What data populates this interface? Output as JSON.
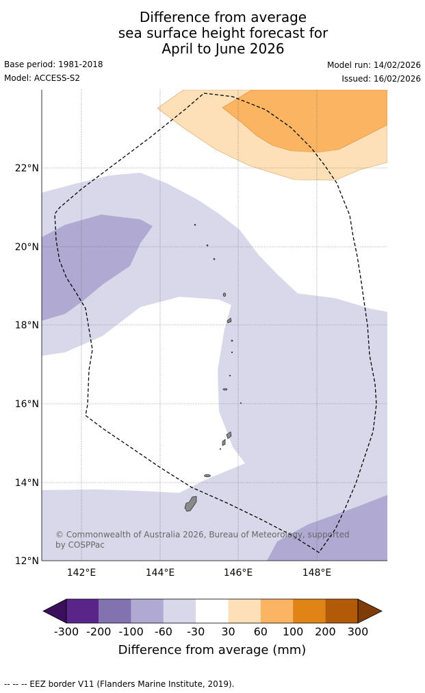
{
  "title": {
    "line1": "Difference from average",
    "line2": "sea surface height forecast for",
    "line3": "April to June 2026"
  },
  "meta": {
    "base_period": "Base period: 1981-2018",
    "model": "Model: ACCESS-S2",
    "model_run": "Model run: 14/02/2026",
    "issued": "Issued: 16/02/2026"
  },
  "map": {
    "lat_labels": [
      "22°N",
      "20°N",
      "18°N",
      "16°N",
      "14°N",
      "12°N"
    ],
    "lon_labels": [
      "142°E",
      "144°E",
      "146°E",
      "148°E"
    ],
    "copyright": [
      "© Commonwealth of Australia 2026, Bureau of Meteorology, supported",
      "by COSPPac"
    ]
  },
  "colorbar": {
    "labels": [
      "-300",
      "-200",
      "-100",
      "-60",
      "-30",
      "30",
      "60",
      "100",
      "200",
      "300"
    ],
    "title": "Difference from average (mm)",
    "colors": [
      "#3b0f5c",
      "#5a2589",
      "#8272b0",
      "#b0aad3",
      "#d8d8ea",
      "#ffffff",
      "#fde0b7",
      "#fbb562",
      "#e08418",
      "#b35a08",
      "#7f3b08"
    ]
  },
  "footer": {
    "eez_note": "--  --  -- EEZ border V11 (Flanders Marine Institute, 2019)."
  }
}
